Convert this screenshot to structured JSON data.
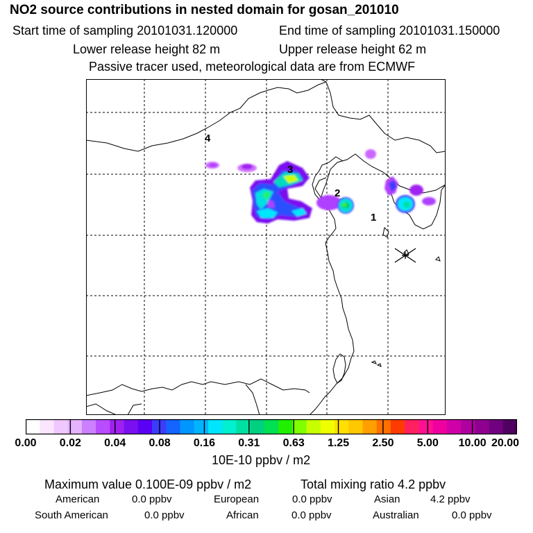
{
  "header": {
    "title": "NO2 source contributions in nested domain for gosan_201010",
    "start_time": "Start time of sampling 20101031.120000",
    "end_time": "End time of sampling 20101031.150000",
    "lower_release": "Lower release height   82 m",
    "upper_release": "Upper release height   62 m",
    "tracer_note": "Passive tracer used, meteorological data are from ECMWF"
  },
  "map": {
    "region_labels": [
      "1",
      "2",
      "3",
      "4"
    ],
    "receptor_marker": "asterisk-icon"
  },
  "colorbar": {
    "colors": [
      "#ffffff",
      "#fae6ff",
      "#f0c8ff",
      "#e6b4ff",
      "#cc80ff",
      "#b84dff",
      "#a020f0",
      "#7a10f0",
      "#5a00f5",
      "#3c3cff",
      "#1464ff",
      "#0096ff",
      "#00b4ff",
      "#00e6ff",
      "#00f0d0",
      "#00e0a0",
      "#00d080",
      "#00e050",
      "#20f000",
      "#80ff00",
      "#c8ff00",
      "#f0ff00",
      "#ffe000",
      "#ffc800",
      "#ffa000",
      "#ff7000",
      "#ff3c00",
      "#ff2060",
      "#ff1090",
      "#f000a0",
      "#d000a8",
      "#b000a0",
      "#900090",
      "#700080",
      "#500060"
    ],
    "tick_labels": [
      "0.00",
      "0.02",
      "0.04",
      "0.08",
      "0.16",
      "0.31",
      "0.63",
      "1.25",
      "2.50",
      "5.00",
      "10.00",
      "20.00"
    ],
    "units": "10E-10 ppbv / m2"
  },
  "summary": {
    "max_value": "Maximum value  0.100E-09 ppbv / m2",
    "total_mixing": "Total mixing ratio       4.2 ppbv",
    "rows": [
      [
        {
          "label": "American",
          "value": "0.0 ppbv"
        },
        {
          "label": "European",
          "value": "0.0 ppbv"
        },
        {
          "label": "Asian",
          "value": "4.2 ppbv"
        }
      ],
      [
        {
          "label": "South American",
          "value": "0.0 ppbv"
        },
        {
          "label": "African",
          "value": "0.0 ppbv"
        },
        {
          "label": "Australian",
          "value": "0.0 ppbv"
        }
      ]
    ]
  }
}
